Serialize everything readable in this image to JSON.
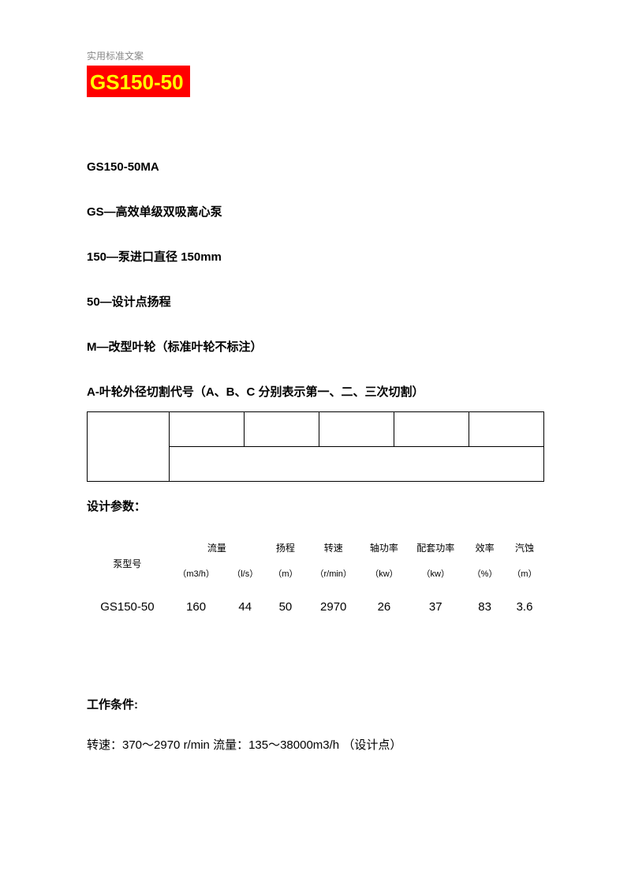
{
  "header_label": "实用标准文案",
  "title_box": "GS150-50",
  "title_box_bg": "#ff0000",
  "title_box_color": "#ffff00",
  "spec_lines": [
    "GS150-50MA",
    "GS—高效单级双吸离心泵",
    "150—泵进口直径 150mm",
    "50—设计点扬程",
    "M—改型叶轮（标准叶轮不标注）",
    "A-叶轮外径切割代号（A、B、C 分别表示第一、二、三次切割）"
  ],
  "empty_table": {
    "rows": 2,
    "row1_cols": 6,
    "row2_cols": 2,
    "border_color": "#000000"
  },
  "design_params_title": "设计参数：",
  "param_table": {
    "headers": [
      {
        "label": "泵型号",
        "unit": "",
        "colspan": 1,
        "rowspan": 2
      },
      {
        "label": "流量",
        "unit": "",
        "colspan": 2
      },
      {
        "label": "扬程",
        "unit": "",
        "colspan": 1
      },
      {
        "label": "转速",
        "unit": "",
        "colspan": 1
      },
      {
        "label": "轴功率",
        "unit": "",
        "colspan": 1
      },
      {
        "label": "配套功率",
        "unit": "",
        "colspan": 1
      },
      {
        "label": "效率",
        "unit": "",
        "colspan": 1
      },
      {
        "label": "汽蚀",
        "unit": "",
        "colspan": 1
      }
    ],
    "units": [
      "（m3/h）",
      "（l/s）",
      "（m）",
      "（r/min）",
      "（kw）",
      "（kw）",
      "（%）",
      "（m）"
    ],
    "data": {
      "model": "GS150-50",
      "m3h": "160",
      "ls": "44",
      "head": "50",
      "speed": "2970",
      "shaft_power": "26",
      "motor_power": "37",
      "eff": "83",
      "npsh": "3.6"
    }
  },
  "work_title": "工作条件:",
  "work_line": "转速：370～2970 r/min  流量：135～38000m3/h （设计点）",
  "colors": {
    "text": "#000000",
    "muted": "#888888",
    "bg": "#ffffff"
  },
  "fontsize": {
    "header_label": 12,
    "title": 26,
    "body": 15,
    "table_label": 12,
    "table_unit": 11,
    "table_data": 15
  }
}
